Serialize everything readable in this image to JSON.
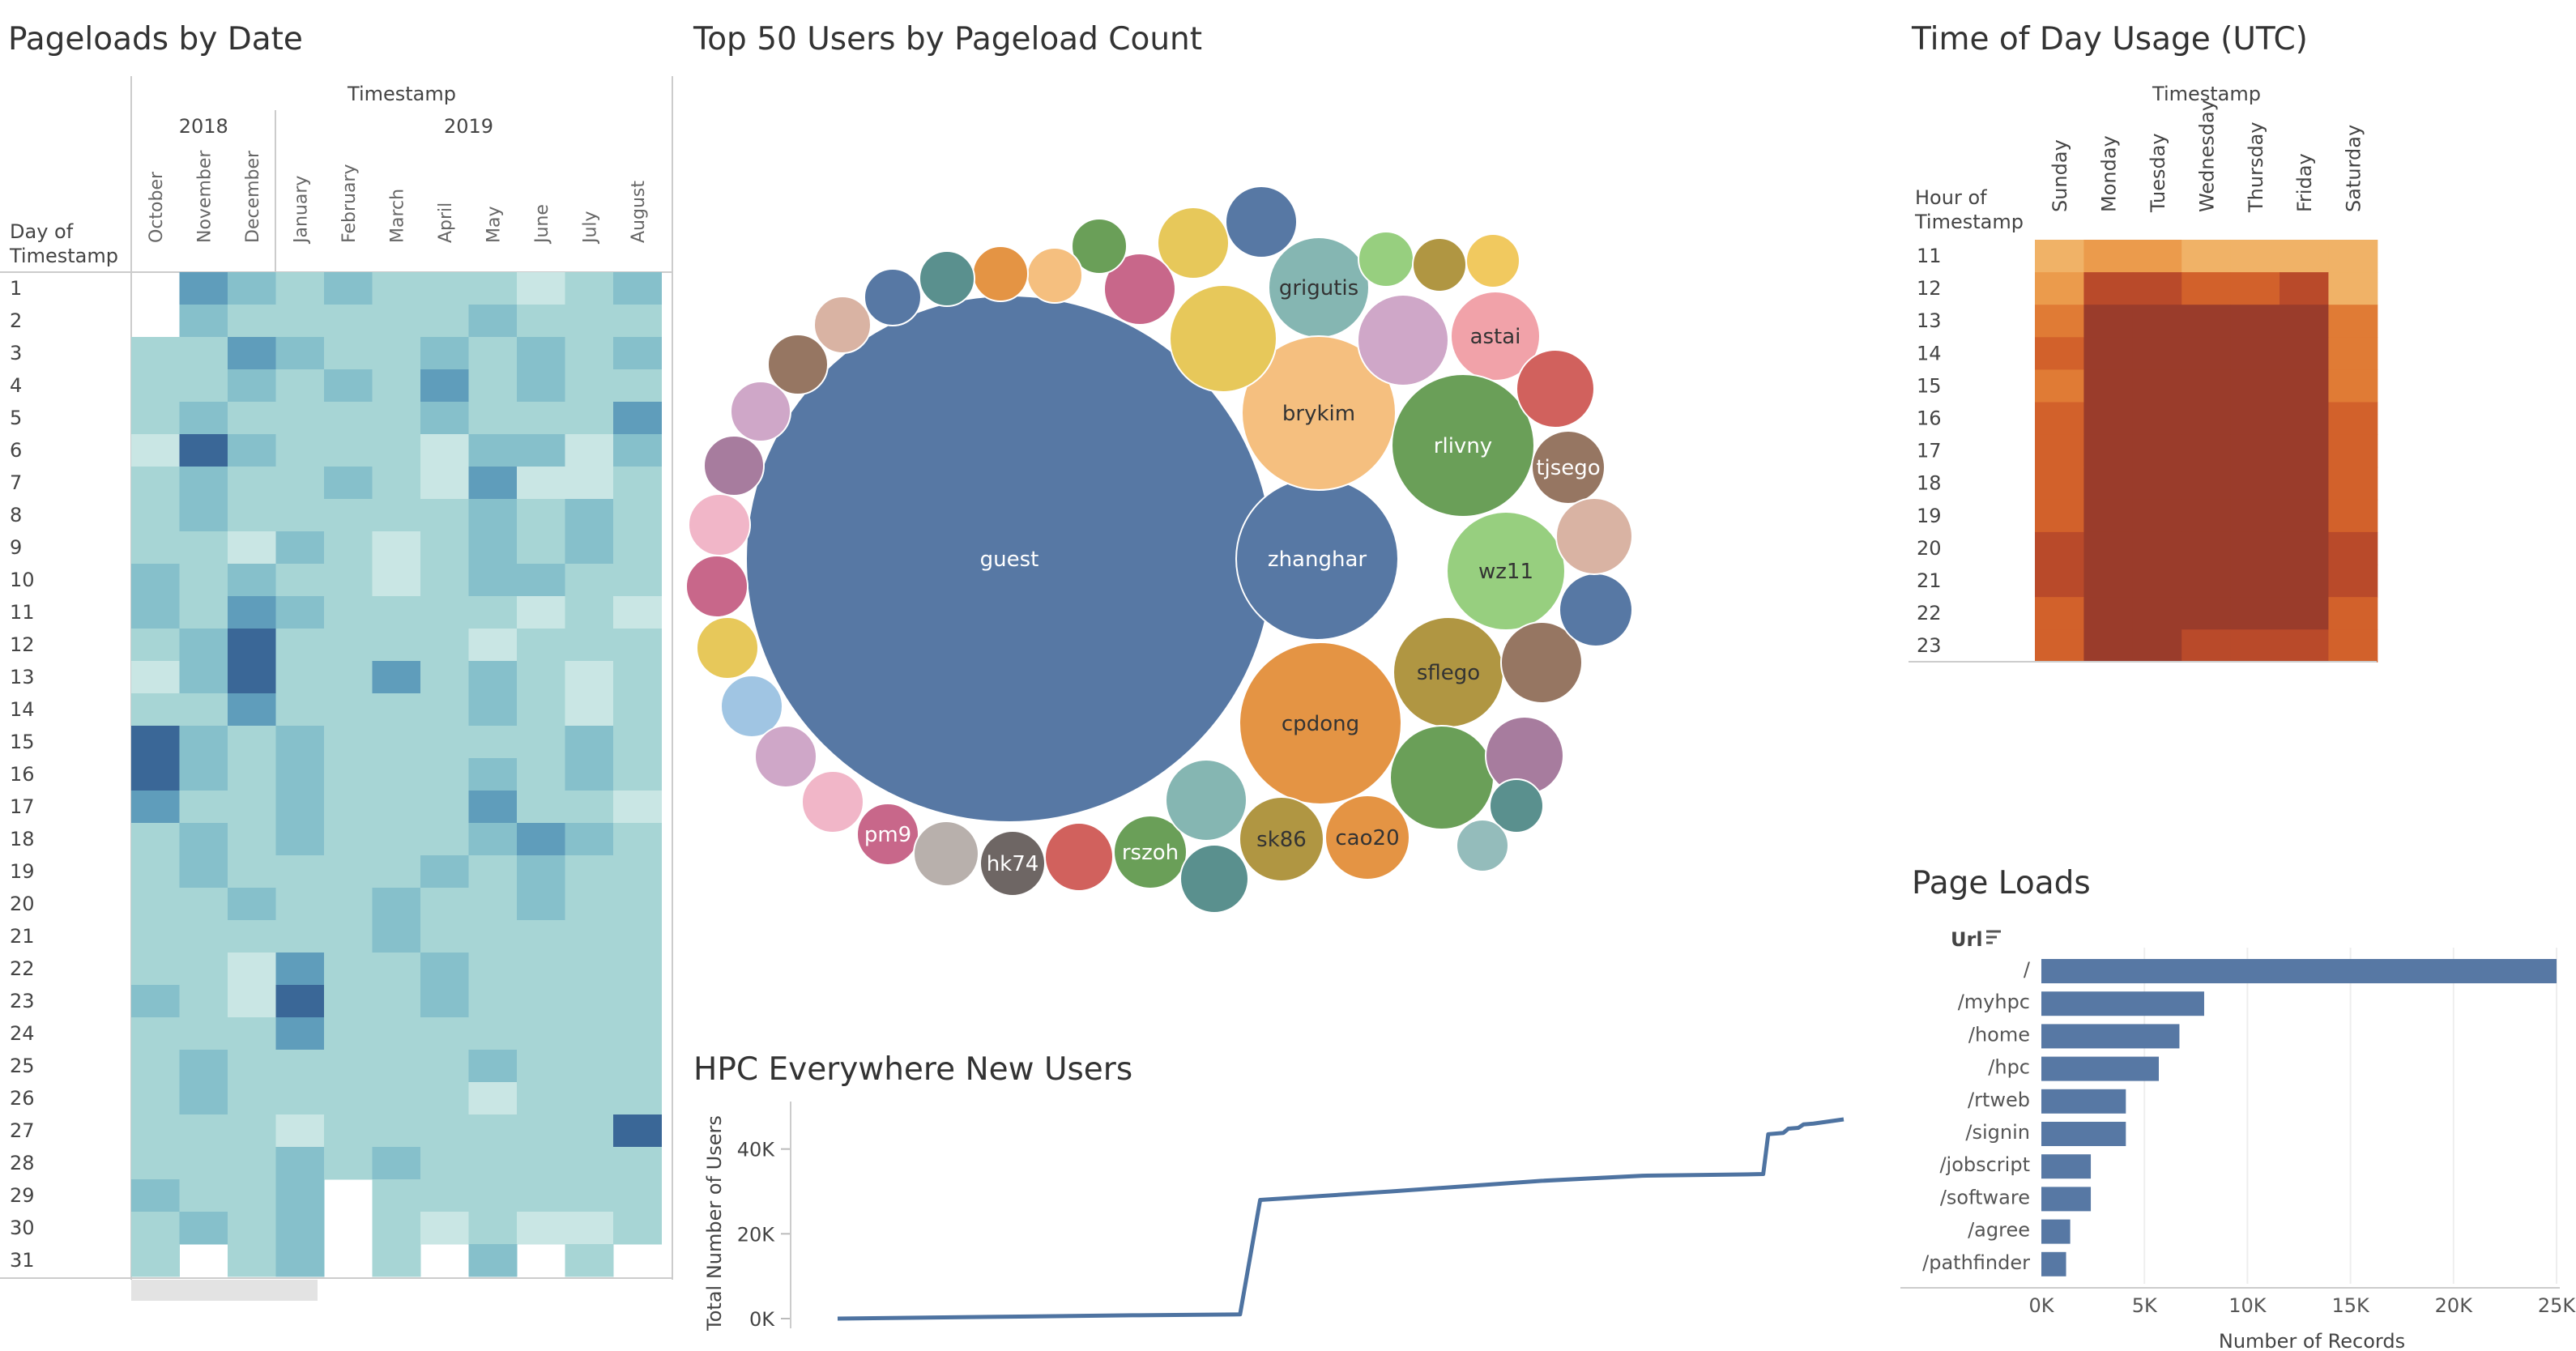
{
  "calendar": {
    "title": "Pageloads by Date",
    "col_header": "Timestamp",
    "row_header": [
      "Day of",
      "Timestamp"
    ],
    "years": [
      {
        "label": "2018",
        "span": 3
      },
      {
        "label": "2019",
        "span": 8
      }
    ],
    "months": [
      "October",
      "November",
      "December",
      "January",
      "February",
      "March",
      "April",
      "May",
      "June",
      "July",
      "August"
    ],
    "days": [
      "1",
      "2",
      "3",
      "4",
      "5",
      "6",
      "7",
      "8",
      "9",
      "10",
      "11",
      "12",
      "13",
      "14",
      "15",
      "16",
      "17",
      "18",
      "19",
      "20",
      "21",
      "22",
      "23",
      "24",
      "25",
      "26",
      "27",
      "28",
      "29",
      "30",
      "31"
    ],
    "colors": [
      "#c9e6e4",
      "#a7d5d5",
      "#86c0cb",
      "#5f9dbb",
      "#3a6797"
    ]
  },
  "bubbles": {
    "title": "Top 50 Users by Pageload Count",
    "labels": [
      "guest",
      "zhanghar",
      "grigutis",
      "astai",
      "brykim",
      "rlivny",
      "tjsego",
      "wz11",
      "sflego",
      "cpdong",
      "sk86",
      "cao20",
      "rszoh",
      "hk74",
      "pm9"
    ]
  },
  "heatmap": {
    "title": "Time of Day Usage (UTC)",
    "col_header": "Timestamp",
    "row_header": [
      "Hour of",
      "Timestamp"
    ],
    "days": [
      "Sunday",
      "Monday",
      "Tuesday",
      "Wednesday",
      "Thursday",
      "Friday",
      "Saturday"
    ],
    "hours": [
      "11",
      "12",
      "13",
      "14",
      "15",
      "16",
      "17",
      "18",
      "19",
      "20",
      "21",
      "22",
      "23"
    ]
  },
  "line": {
    "title": "HPC Everywhere New Users",
    "ylabel": "Total Number of Users"
  },
  "bars": {
    "title": "Page Loads",
    "category_header": "Url",
    "xlabel": "Number of Records"
  },
  "chart_data": [
    {
      "type": "heatmap",
      "title": "Pageloads by Date",
      "x": [
        "October",
        "November",
        "December",
        "January",
        "February",
        "March",
        "April",
        "May",
        "June",
        "July",
        "August"
      ],
      "x_groups": [
        {
          "label": "2018",
          "months": [
            "October",
            "November",
            "December"
          ]
        },
        {
          "label": "2019",
          "months": [
            "January",
            "February",
            "March",
            "April",
            "May",
            "June",
            "July",
            "August"
          ]
        }
      ],
      "y": [
        "1",
        "2",
        "3",
        "4",
        "5",
        "6",
        "7",
        "8",
        "9",
        "10",
        "11",
        "12",
        "13",
        "14",
        "15",
        "16",
        "17",
        "18",
        "19",
        "20",
        "21",
        "22",
        "23",
        "24",
        "25",
        "26",
        "27",
        "28",
        "29",
        "30",
        "31"
      ],
      "levels": [
        [
          -1,
          3,
          2,
          1,
          2,
          1,
          1,
          1,
          0,
          1,
          2
        ],
        [
          -1,
          2,
          1,
          1,
          1,
          1,
          1,
          2,
          1,
          1,
          1
        ],
        [
          1,
          1,
          3,
          2,
          1,
          1,
          2,
          1,
          2,
          1,
          2
        ],
        [
          1,
          1,
          2,
          1,
          2,
          1,
          3,
          1,
          2,
          1,
          1
        ],
        [
          1,
          2,
          1,
          1,
          1,
          1,
          2,
          1,
          1,
          1,
          3
        ],
        [
          0,
          4,
          2,
          1,
          1,
          1,
          0,
          2,
          2,
          0,
          2
        ],
        [
          1,
          2,
          1,
          1,
          2,
          1,
          0,
          3,
          0,
          0,
          1
        ],
        [
          1,
          2,
          1,
          1,
          1,
          1,
          1,
          2,
          1,
          2,
          1
        ],
        [
          1,
          1,
          0,
          2,
          1,
          0,
          1,
          2,
          1,
          2,
          1
        ],
        [
          2,
          1,
          2,
          1,
          1,
          0,
          1,
          2,
          2,
          1,
          1
        ],
        [
          2,
          1,
          3,
          2,
          1,
          1,
          1,
          1,
          0,
          1,
          0
        ],
        [
          1,
          2,
          4,
          1,
          1,
          1,
          1,
          0,
          1,
          1,
          1
        ],
        [
          0,
          2,
          4,
          1,
          1,
          3,
          1,
          2,
          1,
          0,
          1
        ],
        [
          1,
          1,
          3,
          1,
          1,
          1,
          1,
          2,
          1,
          0,
          1
        ],
        [
          4,
          2,
          1,
          2,
          1,
          1,
          1,
          1,
          1,
          2,
          1
        ],
        [
          4,
          2,
          1,
          2,
          1,
          1,
          1,
          2,
          1,
          2,
          1
        ],
        [
          3,
          1,
          1,
          2,
          1,
          1,
          1,
          3,
          1,
          1,
          0
        ],
        [
          1,
          2,
          1,
          2,
          1,
          1,
          1,
          2,
          3,
          2,
          1
        ],
        [
          1,
          2,
          1,
          1,
          1,
          1,
          2,
          1,
          2,
          1,
          1
        ],
        [
          1,
          1,
          2,
          1,
          1,
          2,
          1,
          1,
          2,
          1,
          1
        ],
        [
          1,
          1,
          1,
          1,
          1,
          2,
          1,
          1,
          1,
          1,
          1
        ],
        [
          1,
          1,
          0,
          3,
          1,
          1,
          2,
          1,
          1,
          1,
          1
        ],
        [
          2,
          1,
          0,
          4,
          1,
          1,
          2,
          1,
          1,
          1,
          1
        ],
        [
          1,
          1,
          1,
          3,
          1,
          1,
          1,
          1,
          1,
          1,
          1
        ],
        [
          1,
          2,
          1,
          1,
          1,
          1,
          1,
          2,
          1,
          1,
          1
        ],
        [
          1,
          2,
          1,
          1,
          1,
          1,
          1,
          0,
          1,
          1,
          1
        ],
        [
          1,
          1,
          1,
          0,
          1,
          1,
          1,
          1,
          1,
          1,
          4
        ],
        [
          1,
          1,
          1,
          2,
          1,
          2,
          1,
          1,
          1,
          1,
          1
        ],
        [
          2,
          1,
          1,
          2,
          -1,
          1,
          1,
          1,
          1,
          1,
          1
        ],
        [
          1,
          2,
          1,
          2,
          -1,
          1,
          0,
          1,
          0,
          0,
          1
        ],
        [
          1,
          -1,
          1,
          2,
          -1,
          1,
          -1,
          2,
          -1,
          1,
          -1
        ]
      ]
    },
    {
      "type": "bubble",
      "title": "Top 50 Users by Pageload Count",
      "points": [
        {
          "label": "guest",
          "x": 1246,
          "y": 690,
          "r": 325,
          "color": "#5778a4"
        },
        {
          "label": "zhanghar",
          "x": 1626,
          "y": 690,
          "r": 100,
          "color": "#5778a4"
        },
        {
          "label": "grigutis",
          "x": 1628,
          "y": 355,
          "r": 62,
          "color": "#85b6b2"
        },
        {
          "label": "astai",
          "x": 1846,
          "y": 415,
          "r": 55,
          "color": "#f1a2a9"
        },
        {
          "label": "brykim",
          "x": 1628,
          "y": 510,
          "r": 95,
          "color": "#f5bf7f"
        },
        {
          "label": "rlivny",
          "x": 1806,
          "y": 550,
          "r": 88,
          "color": "#6a9f58"
        },
        {
          "label": "tjsego",
          "x": 1936,
          "y": 577,
          "r": 45,
          "color": "#967662"
        },
        {
          "label": "wz11",
          "x": 1859,
          "y": 705,
          "r": 73,
          "color": "#97cf7f"
        },
        {
          "label": "sflego",
          "x": 1788,
          "y": 830,
          "r": 68,
          "color": "#b09642"
        },
        {
          "label": "cpdong",
          "x": 1630,
          "y": 893,
          "r": 100,
          "color": "#e49444"
        },
        {
          "label": "sk86",
          "x": 1582,
          "y": 1036,
          "r": 52,
          "color": "#b09642"
        },
        {
          "label": "cao20",
          "x": 1688,
          "y": 1034,
          "r": 52,
          "color": "#e49444"
        },
        {
          "label": "rszoh",
          "x": 1420,
          "y": 1052,
          "r": 45,
          "color": "#6a9f58"
        },
        {
          "label": "hk74",
          "x": 1250,
          "y": 1066,
          "r": 40,
          "color": "#6e6664"
        },
        {
          "label": "pm9",
          "x": 1096,
          "y": 1030,
          "r": 38,
          "color": "#c8678a"
        },
        {
          "label": "",
          "x": 1168,
          "y": 1054,
          "r": 40,
          "color": "#b8b0ac"
        },
        {
          "label": "",
          "x": 1332,
          "y": 1058,
          "r": 42,
          "color": "#d1615d"
        },
        {
          "label": "",
          "x": 1489,
          "y": 988,
          "r": 50,
          "color": "#85b6b2"
        },
        {
          "label": "",
          "x": 1499,
          "y": 1085,
          "r": 42,
          "color": "#5a908e"
        },
        {
          "label": "",
          "x": 1780,
          "y": 960,
          "r": 64,
          "color": "#6a9f58"
        },
        {
          "label": "",
          "x": 1882,
          "y": 933,
          "r": 48,
          "color": "#a77c9e"
        },
        {
          "label": "",
          "x": 1869,
          "y": 994,
          "r": 0,
          "color": "#ffffff"
        },
        {
          "label": "",
          "x": 1872,
          "y": 995,
          "r": 33,
          "color": "#5a908e"
        },
        {
          "label": "",
          "x": 1830,
          "y": 1044,
          "r": 32,
          "color": "#94bcbb"
        },
        {
          "label": "",
          "x": 1903,
          "y": 818,
          "r": 50,
          "color": "#967662"
        },
        {
          "label": "",
          "x": 1970,
          "y": 753,
          "r": 45,
          "color": "#5778a4"
        },
        {
          "label": "",
          "x": 1968,
          "y": 662,
          "r": 47,
          "color": "#d9b3a3"
        },
        {
          "label": "",
          "x": 1920,
          "y": 480,
          "r": 48,
          "color": "#d1615d"
        },
        {
          "label": "",
          "x": 1732,
          "y": 420,
          "r": 56,
          "color": "#cfa7c8"
        },
        {
          "label": "",
          "x": 1510,
          "y": 418,
          "r": 66,
          "color": "#e7c85a"
        },
        {
          "label": "",
          "x": 1473,
          "y": 300,
          "r": 44,
          "color": "#e7c85a"
        },
        {
          "label": "",
          "x": 1557,
          "y": 274,
          "r": 44,
          "color": "#5778a4"
        },
        {
          "label": "",
          "x": 1711,
          "y": 320,
          "r": 34,
          "color": "#97cf7f"
        },
        {
          "label": "",
          "x": 1777,
          "y": 327,
          "r": 33,
          "color": "#b09642"
        },
        {
          "label": "",
          "x": 1843,
          "y": 322,
          "r": 33,
          "color": "#f1c95f"
        },
        {
          "label": "",
          "x": 1407,
          "y": 357,
          "r": 44,
          "color": "#c8678a"
        },
        {
          "label": "",
          "x": 1357,
          "y": 304,
          "r": 34,
          "color": "#6a9f58"
        },
        {
          "label": "",
          "x": 1302,
          "y": 340,
          "r": 34,
          "color": "#f5bf7f"
        },
        {
          "label": "",
          "x": 1235,
          "y": 338,
          "r": 34,
          "color": "#e49444"
        },
        {
          "label": "",
          "x": 1169,
          "y": 344,
          "r": 34,
          "color": "#5a908e"
        },
        {
          "label": "",
          "x": 1102,
          "y": 367,
          "r": 35,
          "color": "#5778a4"
        },
        {
          "label": "",
          "x": 1040,
          "y": 401,
          "r": 35,
          "color": "#d9b3a3"
        },
        {
          "label": "",
          "x": 985,
          "y": 450,
          "r": 37,
          "color": "#967662"
        },
        {
          "label": "",
          "x": 939,
          "y": 508,
          "r": 37,
          "color": "#cfa7c8"
        },
        {
          "label": "",
          "x": 906,
          "y": 575,
          "r": 37,
          "color": "#a77c9e"
        },
        {
          "label": "",
          "x": 888,
          "y": 648,
          "r": 38,
          "color": "#f1b6c8"
        },
        {
          "label": "",
          "x": 885,
          "y": 724,
          "r": 38,
          "color": "#c8678a"
        },
        {
          "label": "",
          "x": 898,
          "y": 800,
          "r": 38,
          "color": "#e7c85a"
        },
        {
          "label": "",
          "x": 928,
          "y": 872,
          "r": 38,
          "color": "#a0c5e3"
        },
        {
          "label": "",
          "x": 970,
          "y": 934,
          "r": 38,
          "color": "#cfa7c8"
        },
        {
          "label": "",
          "x": 1028,
          "y": 990,
          "r": 38,
          "color": "#f1b6c8"
        }
      ]
    },
    {
      "type": "heatmap",
      "title": "Time of Day Usage (UTC)",
      "x": [
        "Sunday",
        "Monday",
        "Tuesday",
        "Wednesday",
        "Thursday",
        "Friday",
        "Saturday"
      ],
      "y": [
        "11",
        "12",
        "13",
        "14",
        "15",
        "16",
        "17",
        "18",
        "19",
        "20",
        "21",
        "22",
        "23"
      ],
      "colors": [
        "#f0b267",
        "#eb9b4c",
        "#e07b35",
        "#d2612b",
        "#b94a2a",
        "#9a3c2b"
      ],
      "levels": [
        [
          0,
          1,
          1,
          0,
          0,
          0,
          0
        ],
        [
          1,
          4,
          4,
          3,
          3,
          4,
          0
        ],
        [
          2,
          5,
          5,
          5,
          5,
          5,
          2
        ],
        [
          3,
          5,
          5,
          5,
          5,
          5,
          2
        ],
        [
          2,
          5,
          5,
          5,
          5,
          5,
          2
        ],
        [
          3,
          5,
          5,
          5,
          5,
          5,
          3
        ],
        [
          3,
          5,
          5,
          5,
          5,
          5,
          3
        ],
        [
          3,
          5,
          5,
          5,
          5,
          5,
          3
        ],
        [
          3,
          5,
          5,
          5,
          5,
          5,
          3
        ],
        [
          4,
          5,
          5,
          5,
          5,
          5,
          4
        ],
        [
          4,
          5,
          5,
          5,
          5,
          5,
          4
        ],
        [
          3,
          5,
          5,
          5,
          5,
          5,
          3
        ],
        [
          3,
          5,
          5,
          4,
          4,
          4,
          3
        ]
      ]
    },
    {
      "type": "line",
      "title": "HPC Everywhere New Users",
      "ylabel": "Total Number of Users",
      "yticks": [
        "0K",
        "20K",
        "40K"
      ],
      "ylim": [
        0,
        47000
      ],
      "series": [
        {
          "values": [
            [
              0,
              0
            ],
            [
              0.15,
              400
            ],
            [
              0.3,
              800
            ],
            [
              0.4,
              1000
            ],
            [
              0.42,
              28000
            ],
            [
              0.55,
              30000
            ],
            [
              0.7,
              32500
            ],
            [
              0.8,
              33700
            ],
            [
              0.9,
              34000
            ],
            [
              0.92,
              34100
            ],
            [
              0.925,
              43500
            ],
            [
              0.94,
              43800
            ],
            [
              0.945,
              44800
            ],
            [
              0.955,
              45000
            ],
            [
              0.96,
              45800
            ],
            [
              0.97,
              46000
            ],
            [
              1.0,
              47000
            ]
          ]
        }
      ]
    },
    {
      "type": "bar",
      "title": "Page Loads",
      "orientation": "horizontal",
      "categories": [
        "/",
        "/myhpc",
        "/home",
        "/hpc",
        "/rtweb",
        "/signin",
        "/jobscript",
        "/software",
        "/agree",
        "/pathfinder"
      ],
      "values": [
        25000,
        7900,
        6700,
        5700,
        4100,
        4100,
        2400,
        2400,
        1400,
        1200
      ],
      "xlabel": "Number of Records",
      "xticks": [
        "0K",
        "5K",
        "10K",
        "15K",
        "20K",
        "25K"
      ],
      "xlim": [
        0,
        25000
      ],
      "color": "#5778a4"
    }
  ]
}
